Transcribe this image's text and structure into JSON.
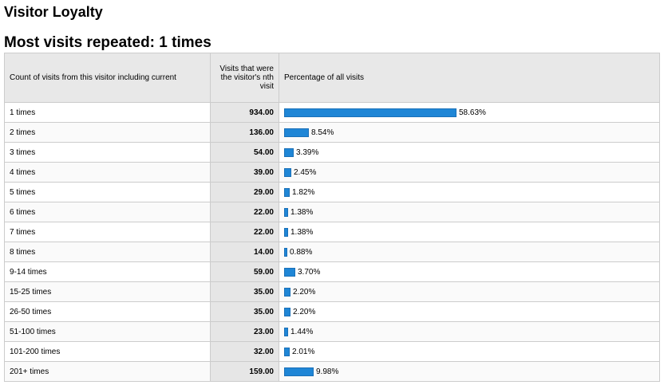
{
  "report": {
    "title": "Visitor Loyalty",
    "subtitle": "Most visits repeated: 1 times"
  },
  "table": {
    "headers": {
      "count": "Count of visits from this visitor including current",
      "visits": "Visits that were the visitor's nth visit",
      "percentage": "Percentage of all visits"
    },
    "bar_color": "#1f86d6",
    "rows": [
      {
        "count": "1 times",
        "visits": "934.00",
        "percent": "58.63%",
        "value": 58.63
      },
      {
        "count": "2 times",
        "visits": "136.00",
        "percent": "8.54%",
        "value": 8.54
      },
      {
        "count": "3 times",
        "visits": "54.00",
        "percent": "3.39%",
        "value": 3.39
      },
      {
        "count": "4 times",
        "visits": "39.00",
        "percent": "2.45%",
        "value": 2.45
      },
      {
        "count": "5 times",
        "visits": "29.00",
        "percent": "1.82%",
        "value": 1.82
      },
      {
        "count": "6 times",
        "visits": "22.00",
        "percent": "1.38%",
        "value": 1.38
      },
      {
        "count": "7 times",
        "visits": "22.00",
        "percent": "1.38%",
        "value": 1.38
      },
      {
        "count": "8 times",
        "visits": "14.00",
        "percent": "0.88%",
        "value": 0.88
      },
      {
        "count": "9-14 times",
        "visits": "59.00",
        "percent": "3.70%",
        "value": 3.7
      },
      {
        "count": "15-25 times",
        "visits": "35.00",
        "percent": "2.20%",
        "value": 2.2
      },
      {
        "count": "26-50 times",
        "visits": "35.00",
        "percent": "2.20%",
        "value": 2.2
      },
      {
        "count": "51-100 times",
        "visits": "23.00",
        "percent": "1.44%",
        "value": 1.44
      },
      {
        "count": "101-200 times",
        "visits": "32.00",
        "percent": "2.01%",
        "value": 2.01
      },
      {
        "count": "201+ times",
        "visits": "159.00",
        "percent": "9.98%",
        "value": 9.98
      }
    ]
  }
}
